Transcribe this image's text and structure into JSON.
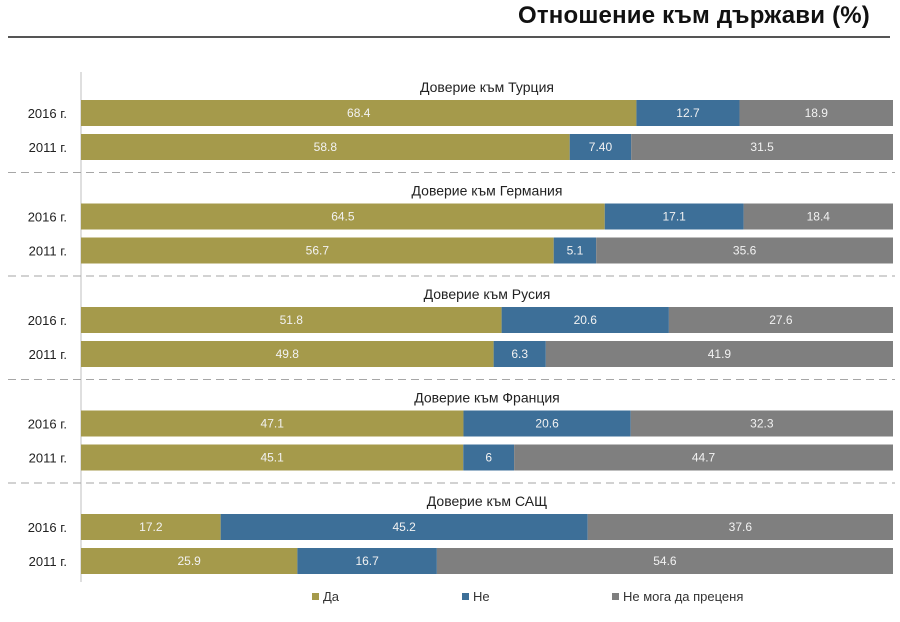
{
  "chart_data": {
    "type": "bar",
    "stacked": true,
    "orientation": "horizontal",
    "title": "Отношение към държави (%)",
    "series_names": [
      "Да",
      "Не",
      "Не мога да преценя"
    ],
    "colors": {
      "yes": "#a59a4b",
      "no": "#3d6f98",
      "unsure": "#7f7f7f"
    },
    "groups": [
      {
        "title": "Доверие към Турция",
        "rows": [
          {
            "label": "2016 г.",
            "values": [
              68.4,
              12.7,
              18.9
            ],
            "labels": [
              "68.4",
              "12.7",
              "18.9"
            ]
          },
          {
            "label": "2011 г.",
            "values": [
              58.8,
              7.4,
              31.5
            ],
            "labels": [
              "58.8",
              "7.40",
              "31.5"
            ]
          }
        ]
      },
      {
        "title": "Доверие към Германия",
        "rows": [
          {
            "label": "2016 г.",
            "values": [
              64.5,
              17.1,
              18.4
            ],
            "labels": [
              "64.5",
              "17.1",
              "18.4"
            ]
          },
          {
            "label": "2011 г.",
            "values": [
              56.7,
              5.1,
              35.6
            ],
            "labels": [
              "56.7",
              "5.1",
              "35.6"
            ]
          }
        ]
      },
      {
        "title": "Доверие към Русия",
        "rows": [
          {
            "label": "2016 г.",
            "values": [
              51.8,
              20.6,
              27.6
            ],
            "labels": [
              "51.8",
              "20.6",
              "27.6"
            ]
          },
          {
            "label": "2011 г.",
            "values": [
              49.8,
              6.3,
              41.9
            ],
            "labels": [
              "49.8",
              "6.3",
              "41.9"
            ]
          }
        ]
      },
      {
        "title": "Доверие към Франция",
        "rows": [
          {
            "label": "2016 г.",
            "values": [
              47.1,
              20.6,
              32.3
            ],
            "labels": [
              "47.1",
              "20.6",
              "32.3"
            ]
          },
          {
            "label": "2011 г.",
            "values": [
              45.1,
              6,
              44.7
            ],
            "labels": [
              "45.1",
              "6",
              "44.7"
            ]
          }
        ]
      },
      {
        "title": "Доверие към САЩ",
        "rows": [
          {
            "label": "2016 г.",
            "values": [
              17.2,
              45.2,
              37.6
            ],
            "labels": [
              "17.2",
              "45.2",
              "37.6"
            ]
          },
          {
            "label": "2011 г.",
            "values": [
              25.9,
              16.7,
              54.6
            ],
            "labels": [
              "25.9",
              "16.7",
              "54.6"
            ]
          }
        ]
      }
    ]
  }
}
